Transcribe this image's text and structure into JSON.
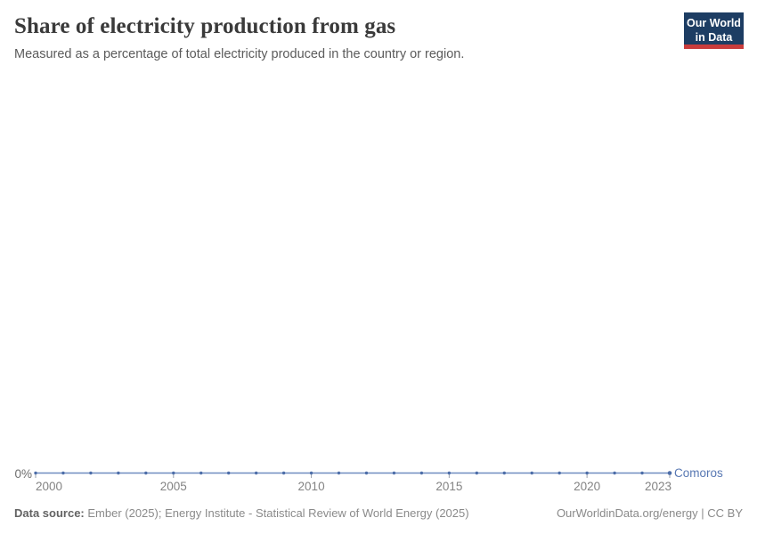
{
  "header": {
    "title": "Share of electricity production from gas",
    "subtitle": "Measured as a percentage of total electricity produced in the country or region."
  },
  "logo": {
    "line1": "Our World",
    "line2": "in Data",
    "bg_color": "#1d3d63",
    "stripe_color": "#c93c3c"
  },
  "chart_data": {
    "type": "line",
    "title": "Share of electricity production from gas",
    "xlabel": "",
    "ylabel": "",
    "xlim": [
      2000,
      2023
    ],
    "ylim": [
      0,
      0
    ],
    "grid": false,
    "y_tick_labels": [
      "0%"
    ],
    "x_ticks": [
      2000,
      2005,
      2010,
      2015,
      2020,
      2023
    ],
    "x_tick_labels": [
      "2000",
      "2005",
      "2010",
      "2015",
      "2020",
      "2023"
    ],
    "series": [
      {
        "name": "Comoros",
        "color": "#4c6da8",
        "line_color": "#6f8cc0",
        "x": [
          2000,
          2001,
          2002,
          2003,
          2004,
          2005,
          2006,
          2007,
          2008,
          2009,
          2010,
          2011,
          2012,
          2013,
          2014,
          2015,
          2016,
          2017,
          2018,
          2019,
          2020,
          2021,
          2022,
          2023
        ],
        "values": [
          0,
          0,
          0,
          0,
          0,
          0,
          0,
          0,
          0,
          0,
          0,
          0,
          0,
          0,
          0,
          0,
          0,
          0,
          0,
          0,
          0,
          0,
          0,
          0
        ]
      }
    ],
    "y_zero_label": "0%",
    "legend_position": "end-of-line"
  },
  "footer": {
    "source_label": "Data source:",
    "source_text": " Ember (2025); Energy Institute - Statistical Review of World Energy (2025)",
    "note_right": "OurWorldinData.org/energy | CC BY"
  }
}
